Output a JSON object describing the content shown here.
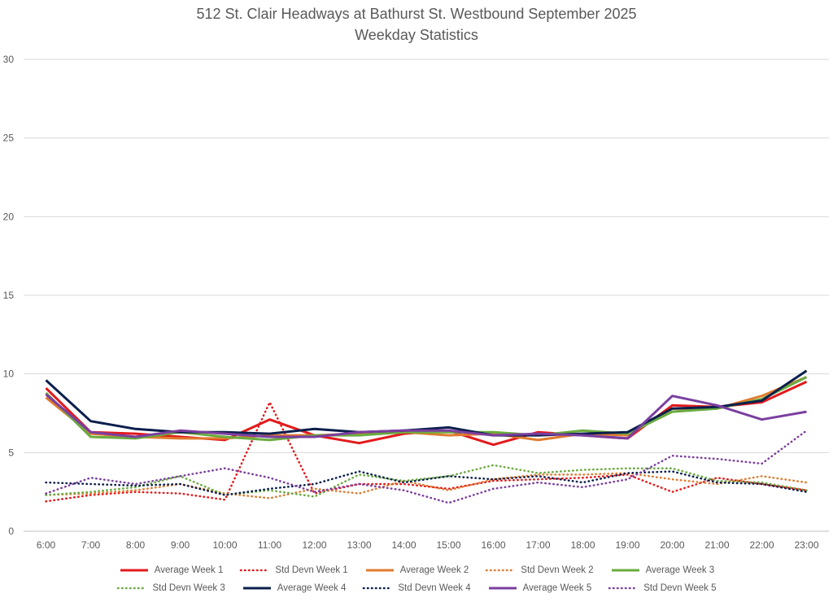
{
  "chart_data": {
    "type": "line",
    "title": "512 St. Clair Headways at Bathurst St. Westbound September 2025",
    "subtitle": "Weekday Statistics",
    "xlabel": "",
    "ylabel": "",
    "ylim": [
      0,
      30
    ],
    "yticks": [
      "0",
      "5",
      "10",
      "15",
      "20",
      "25",
      "30"
    ],
    "grid": "horizontal",
    "legend_position": "bottom",
    "categories": [
      "6:00",
      "7:00",
      "8:00",
      "9:00",
      "10:00",
      "11:00",
      "12:00",
      "13:00",
      "14:00",
      "15:00",
      "16:00",
      "17:00",
      "18:00",
      "19:00",
      "20:00",
      "21:00",
      "22:00",
      "23:00"
    ],
    "series": [
      {
        "name": "Average Week 1",
        "style": "solid",
        "color": "#E31A1C",
        "values": [
          9.1,
          6.3,
          6.2,
          6.0,
          5.8,
          7.1,
          6.1,
          5.6,
          6.2,
          6.4,
          5.5,
          6.3,
          6.1,
          5.9,
          8.0,
          7.9,
          8.2,
          9.5
        ]
      },
      {
        "name": "Std Devn Week 1",
        "style": "dotted",
        "color": "#E31A1C",
        "values": [
          1.9,
          2.3,
          2.5,
          2.4,
          2.0,
          8.2,
          2.4,
          3.0,
          3.0,
          2.7,
          3.2,
          3.3,
          3.4,
          3.6,
          2.5,
          3.4,
          3.0,
          2.6
        ]
      },
      {
        "name": "Average Week 2",
        "style": "solid",
        "color": "#E07B2F",
        "values": [
          8.5,
          6.2,
          6.0,
          5.9,
          5.9,
          6.1,
          6.1,
          6.2,
          6.3,
          6.1,
          6.2,
          5.8,
          6.2,
          6.1,
          7.8,
          7.8,
          8.6,
          9.8
        ]
      },
      {
        "name": "Std Devn Week 2",
        "style": "dotted",
        "color": "#E07B2F",
        "values": [
          2.3,
          2.4,
          2.6,
          3.0,
          2.4,
          2.1,
          2.7,
          2.4,
          3.2,
          2.6,
          3.3,
          3.6,
          3.6,
          3.7,
          3.3,
          3.0,
          3.5,
          3.1
        ]
      },
      {
        "name": "Average Week 3",
        "style": "solid",
        "color": "#6AAB3F",
        "values": [
          8.8,
          6.0,
          5.9,
          6.3,
          6.0,
          5.8,
          6.1,
          6.1,
          6.3,
          6.3,
          6.3,
          6.1,
          6.4,
          6.2,
          7.6,
          7.8,
          8.4,
          9.8
        ]
      },
      {
        "name": "Std Devn Week 3",
        "style": "dotted",
        "color": "#6AAB3F",
        "values": [
          2.3,
          2.5,
          2.8,
          3.5,
          2.3,
          2.6,
          2.2,
          3.6,
          3.2,
          3.5,
          4.2,
          3.7,
          3.9,
          4.0,
          4.0,
          3.2,
          3.1,
          2.6
        ]
      },
      {
        "name": "Average Week 4",
        "style": "solid",
        "color": "#0B1F4D",
        "values": [
          9.6,
          7.0,
          6.5,
          6.3,
          6.3,
          6.2,
          6.5,
          6.3,
          6.4,
          6.6,
          6.1,
          6.1,
          6.2,
          6.3,
          7.8,
          7.9,
          8.3,
          10.2
        ]
      },
      {
        "name": "Std Devn Week 4",
        "style": "dotted",
        "color": "#0B1F4D",
        "values": [
          3.1,
          3.0,
          2.9,
          3.0,
          2.3,
          2.7,
          3.0,
          3.8,
          3.1,
          3.5,
          3.3,
          3.5,
          3.1,
          3.7,
          3.8,
          3.1,
          3.0,
          2.5
        ]
      },
      {
        "name": "Average Week 5",
        "style": "solid",
        "color": "#7B3FA0",
        "values": [
          8.7,
          6.3,
          6.0,
          6.4,
          6.2,
          6.0,
          6.0,
          6.3,
          6.4,
          6.4,
          6.1,
          6.2,
          6.1,
          5.9,
          8.6,
          8.0,
          7.1,
          7.6
        ]
      },
      {
        "name": "Std Devn Week 5",
        "style": "dotted",
        "color": "#7B3FA0",
        "values": [
          2.4,
          3.4,
          3.0,
          3.5,
          4.0,
          3.4,
          2.5,
          3.0,
          2.6,
          1.8,
          2.7,
          3.1,
          2.8,
          3.3,
          4.8,
          4.6,
          4.3,
          6.4
        ]
      }
    ]
  }
}
